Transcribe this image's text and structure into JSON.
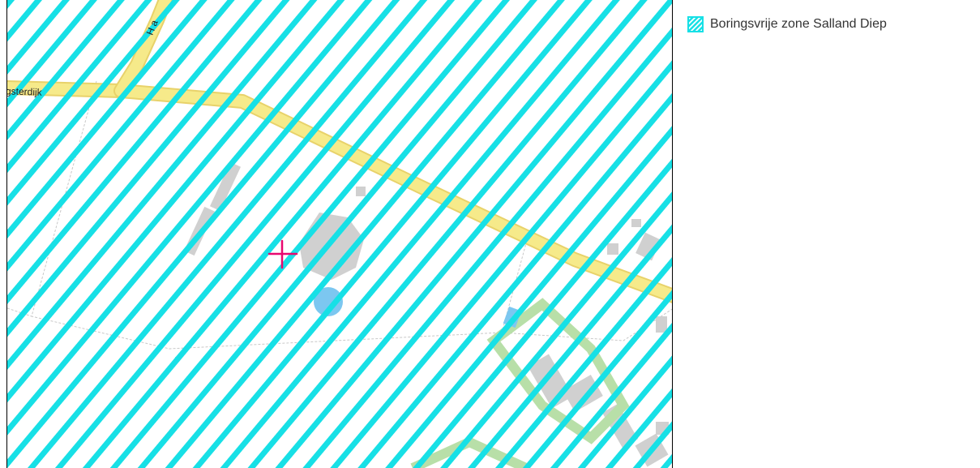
{
  "map": {
    "road_labels": {
      "main_road": "gsterdijk",
      "side_road": "H a"
    },
    "colors": {
      "hatch": "#17e0e6",
      "road_fill": "#f6ea8a",
      "road_casing": "#e8d26a",
      "building": "#d0d0d0",
      "water": "#7cc7f0",
      "green": "#b8dfa8",
      "parcel_line": "#c8c8c8",
      "marker": "#e8086f"
    },
    "icons": {
      "marker": "crosshair-marker-icon"
    }
  },
  "legend": {
    "items": [
      {
        "label": "Boringsvrije zone Salland Diep",
        "icon": "hatch-swatch-icon"
      }
    ]
  }
}
